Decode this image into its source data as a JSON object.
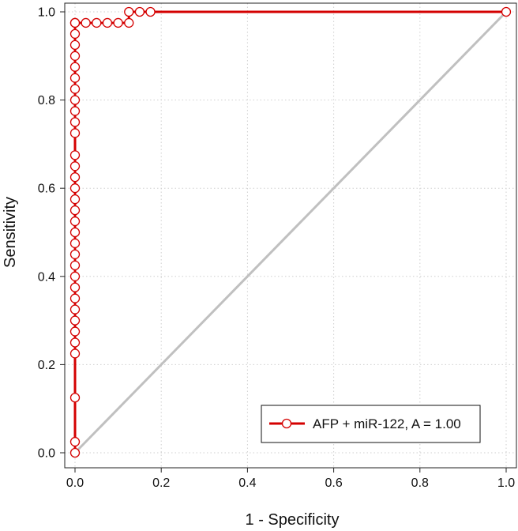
{
  "chart_data": {
    "type": "line",
    "xlabel": "1 - Specificity",
    "ylabel": "Sensitivity",
    "xlim": [
      0,
      1
    ],
    "ylim": [
      0,
      1
    ],
    "xticks": [
      "0.0",
      "0.2",
      "0.4",
      "0.6",
      "0.8",
      "1.0"
    ],
    "yticks": [
      "0.0",
      "0.2",
      "0.4",
      "0.6",
      "0.8",
      "1.0"
    ],
    "grid": true,
    "legend_position": "bottom-right",
    "series": [
      {
        "name": "AFP + miR-122, A = 1.00",
        "color": "#d40000",
        "marker": "open-circle",
        "x": [
          0,
          0,
          0,
          0,
          0,
          0,
          0,
          0,
          0,
          0,
          0,
          0,
          0,
          0,
          0,
          0,
          0,
          0,
          0,
          0,
          0,
          0,
          0,
          0,
          0,
          0,
          0,
          0,
          0,
          0,
          0,
          0,
          0,
          0,
          0,
          0.025,
          0.05,
          0.075,
          0.1,
          0.125,
          0.125,
          0.15,
          0.175,
          1.0
        ],
        "y": [
          0,
          0.025,
          0.125,
          0.225,
          0.25,
          0.275,
          0.3,
          0.325,
          0.35,
          0.375,
          0.4,
          0.425,
          0.45,
          0.475,
          0.5,
          0.525,
          0.55,
          0.575,
          0.6,
          0.625,
          0.65,
          0.675,
          0.725,
          0.75,
          0.775,
          0.8,
          0.825,
          0.85,
          0.875,
          0.9,
          0.925,
          0.95,
          0.975,
          0.975,
          0.975,
          0.975,
          0.975,
          0.975,
          0.975,
          0.975,
          1.0,
          1.0,
          1.0,
          1.0
        ]
      },
      {
        "name": "",
        "color": "#c0c0c0",
        "marker": "none",
        "x": [
          0,
          1
        ],
        "y": [
          0,
          1
        ]
      }
    ]
  }
}
